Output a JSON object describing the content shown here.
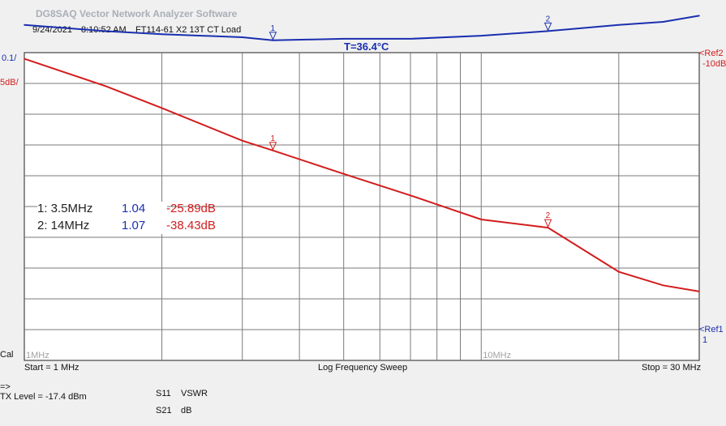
{
  "app": {
    "title": "DG8SAQ Vector Network Analyzer Software",
    "date": "9/24/2021",
    "time": "8:10:52 AM",
    "dut": "FT114-61 X2 13T CT Load",
    "temperature": "T=36.4°C"
  },
  "left_labels": {
    "s11_scale": "0.1/",
    "s21_scale": "5dB/",
    "cal": "Cal"
  },
  "right_labels": {
    "ref2": "<Ref2",
    "ref2_value": "-10dB",
    "ref1": "<Ref1",
    "ref1_value": "1"
  },
  "markers": [
    {
      "label": "1: 3.5MHz",
      "s11": "1.04",
      "s21": "-25.89dB"
    },
    {
      "label": "2: 14MHz",
      "s11": "1.07",
      "s21": "-38.43dB"
    }
  ],
  "sweep": {
    "start": "Start = 1 MHz",
    "mode": "Log Frequency Sweep",
    "stop": "Stop = 30 MHz"
  },
  "tx": {
    "arrow": "=>",
    "level": "TX Level = -17.4 dBm"
  },
  "legend": [
    {
      "param": "S11",
      "format": "VSWR",
      "color": "#1a2fb0"
    },
    {
      "param": "S21",
      "format": "dB",
      "color": "#d21d1d"
    }
  ],
  "chart_data": {
    "type": "line",
    "x_scale": "log",
    "xlim": [
      1,
      30
    ],
    "x_ticks": [
      1,
      2,
      3,
      4,
      5,
      6,
      7,
      8,
      9,
      10,
      20,
      30
    ],
    "x_tick_labels": [
      {
        "x": 1,
        "label": "1MHz"
      },
      {
        "x": 10,
        "label": "10MHz"
      }
    ],
    "grid": true,
    "series": [
      {
        "name": "S21",
        "axis": "right",
        "unit": "dB",
        "ref": -10,
        "per_div": 5,
        "color": "#d21d1d",
        "x": [
          1,
          1.5,
          2,
          3,
          3.5,
          5,
          7,
          10,
          14,
          20,
          25,
          30
        ],
        "y": [
          -11,
          -15.4,
          -19,
          -24.3,
          -25.89,
          -29.7,
          -33.2,
          -37.1,
          -38.43,
          -45.6,
          -47.8,
          -48.8
        ]
      },
      {
        "name": "S11",
        "axis": "left",
        "unit": "VSWR",
        "ref": 1,
        "per_div": 0.1,
        "color": "#1a2fb0",
        "x": [
          1,
          1.5,
          2,
          3,
          3.5,
          5,
          7,
          10,
          14,
          20,
          25,
          30
        ],
        "y": [
          1.09,
          1.07,
          1.06,
          1.05,
          1.04,
          1.045,
          1.045,
          1.055,
          1.07,
          1.09,
          1.1,
          1.12
        ]
      }
    ],
    "markers": [
      {
        "id": "1",
        "x": 3.5
      },
      {
        "id": "2",
        "x": 14
      }
    ]
  }
}
